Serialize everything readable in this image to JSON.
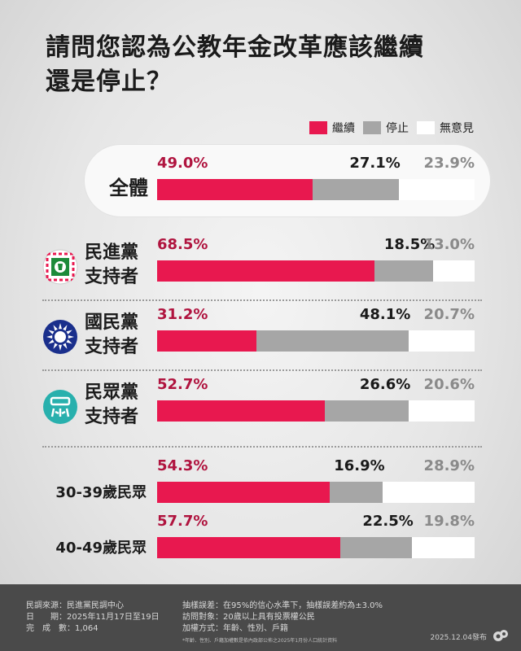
{
  "title_line1": "請問您認為公教年金改革應該繼續",
  "title_line2": "還是停止？",
  "legend": [
    {
      "label": "繼續",
      "color": "#e8184f"
    },
    {
      "label": "停止",
      "color": "#a6a6a6"
    },
    {
      "label": "無意見",
      "color": "#ffffff"
    }
  ],
  "chart_data": {
    "type": "bar",
    "stacked": true,
    "orientation": "horizontal",
    "title": "請問您認為公教年金改革應該繼續還是停止？",
    "categories": [
      "全體",
      "民進黨支持者",
      "國民黨支持者",
      "民眾黨支持者",
      "30-39歲民眾",
      "40-49歲民眾"
    ],
    "series": [
      {
        "name": "繼續",
        "values": [
          49.0,
          68.5,
          31.2,
          52.7,
          54.3,
          57.7
        ]
      },
      {
        "name": "停止",
        "values": [
          27.1,
          18.5,
          48.1,
          26.6,
          16.9,
          22.5
        ]
      },
      {
        "name": "無意見",
        "values": [
          23.9,
          13.0,
          20.7,
          20.6,
          28.9,
          19.8
        ]
      }
    ],
    "labels": [
      [
        "49.0%",
        "27.1%",
        "23.9%"
      ],
      [
        "68.5%",
        "18.5%",
        "13.0%"
      ],
      [
        "31.2%",
        "48.1%",
        "20.7%"
      ],
      [
        "52.7%",
        "26.6%",
        "20.6%"
      ],
      [
        "54.3%",
        "16.9%",
        "28.9%"
      ],
      [
        "57.7%",
        "22.5%",
        "19.8%"
      ]
    ],
    "row_labels": [
      [
        "全體"
      ],
      [
        "民進黨",
        "支持者"
      ],
      [
        "國民黨",
        "支持者"
      ],
      [
        "民眾黨",
        "支持者"
      ],
      [
        "30-39歲民眾"
      ],
      [
        "40-49歲民眾"
      ]
    ],
    "row_icons": [
      null,
      "dpp-flag-icon",
      "kmt-sun-icon",
      "tpp-logo-icon",
      null,
      null
    ],
    "xlim": [
      0,
      100
    ],
    "legend_position": "top-right"
  },
  "footer": {
    "source_label": "民調來源：民進黨民調中心",
    "date_label": "日　　期：2025年11月17日至19日",
    "sample_label": "完　成　數：1,064",
    "error_label": "抽樣誤差：在95%的信心水準下，抽樣誤差約為±3.0%",
    "target_label": "訪問對象：20歲以上具有投票權公民",
    "weight_label": "加權方式：年齡、性別、戶籍",
    "note": "*年齡、性別、戶籍加權數是依內政部公佈之2025年1月份人口統計資料",
    "publish_date": "2025.12.04發布"
  }
}
